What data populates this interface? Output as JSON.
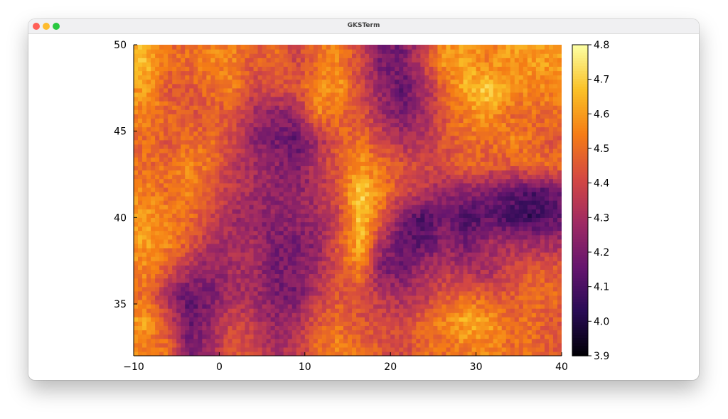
{
  "window": {
    "title": "GKSTerm"
  },
  "chart_data": {
    "type": "heatmap",
    "title": "",
    "xlabel": "",
    "ylabel": "",
    "xlim": [
      -10,
      40
    ],
    "ylim": [
      32,
      50
    ],
    "x_ticks": [
      "−10",
      "0",
      "10",
      "20",
      "30",
      "40"
    ],
    "y_ticks": [
      "35",
      "40",
      "45",
      "50"
    ],
    "colorbar": {
      "range": [
        3.9,
        4.8
      ],
      "ticks": [
        "3.9",
        "4.0",
        "4.1",
        "4.2",
        "4.3",
        "4.4",
        "4.5",
        "4.6",
        "4.7",
        "4.8"
      ],
      "colormap": "inferno"
    },
    "grid": false,
    "legend": "none",
    "y_values": [
      32.5,
      34,
      35.5,
      37,
      38.5,
      40,
      41.5,
      43,
      44.5,
      46,
      47.5,
      49
    ],
    "x_values": [
      -8.5,
      -6,
      -3.5,
      -1,
      1.5,
      4,
      6.5,
      9,
      11.5,
      14,
      16.5,
      19,
      21.5,
      24,
      26.5,
      29,
      31.5,
      34,
      36.5,
      39
    ],
    "z": [
      [
        4.55,
        4.5,
        4.2,
        4.3,
        4.45,
        4.4,
        4.3,
        4.35,
        4.5,
        4.55,
        4.5,
        4.45,
        4.4,
        4.5,
        4.5,
        4.55,
        4.55,
        4.5,
        4.5,
        4.45
      ],
      [
        4.6,
        4.4,
        4.15,
        4.25,
        4.4,
        4.35,
        4.25,
        4.3,
        4.45,
        4.5,
        4.45,
        4.4,
        4.4,
        4.5,
        4.55,
        4.65,
        4.6,
        4.5,
        4.5,
        4.45
      ],
      [
        4.5,
        4.3,
        4.15,
        4.2,
        4.3,
        4.3,
        4.2,
        4.2,
        4.35,
        4.45,
        4.4,
        4.35,
        4.3,
        4.35,
        4.45,
        4.5,
        4.45,
        4.45,
        4.5,
        4.5
      ],
      [
        4.55,
        4.45,
        4.3,
        4.25,
        4.3,
        4.3,
        4.2,
        4.2,
        4.3,
        4.45,
        4.55,
        4.2,
        4.2,
        4.3,
        4.35,
        4.3,
        4.3,
        4.4,
        4.45,
        4.45
      ],
      [
        4.6,
        4.55,
        4.45,
        4.3,
        4.3,
        4.3,
        4.2,
        4.2,
        4.25,
        4.45,
        4.65,
        4.3,
        4.15,
        4.15,
        4.25,
        4.2,
        4.3,
        4.3,
        4.3,
        4.3
      ],
      [
        4.6,
        4.55,
        4.5,
        4.4,
        4.3,
        4.25,
        4.25,
        4.25,
        4.3,
        4.4,
        4.7,
        4.45,
        4.2,
        4.1,
        4.2,
        4.1,
        4.15,
        4.1,
        4.05,
        4.15
      ],
      [
        4.55,
        4.5,
        4.55,
        4.45,
        4.35,
        4.3,
        4.25,
        4.25,
        4.3,
        4.45,
        4.7,
        4.55,
        4.4,
        4.35,
        4.25,
        4.25,
        4.2,
        4.15,
        4.1,
        4.15
      ],
      [
        4.5,
        4.5,
        4.55,
        4.5,
        4.35,
        4.3,
        4.25,
        4.2,
        4.35,
        4.45,
        4.6,
        4.5,
        4.45,
        4.4,
        4.4,
        4.5,
        4.45,
        4.45,
        4.5,
        4.5
      ],
      [
        4.5,
        4.45,
        4.5,
        4.5,
        4.4,
        4.25,
        4.2,
        4.15,
        4.3,
        4.45,
        4.5,
        4.4,
        4.3,
        4.35,
        4.45,
        4.5,
        4.5,
        4.55,
        4.5,
        4.45
      ],
      [
        4.55,
        4.5,
        4.45,
        4.45,
        4.45,
        4.3,
        4.25,
        4.25,
        4.55,
        4.5,
        4.45,
        4.3,
        4.2,
        4.3,
        4.45,
        4.55,
        4.6,
        4.5,
        4.5,
        4.5
      ],
      [
        4.6,
        4.45,
        4.45,
        4.5,
        4.55,
        4.4,
        4.4,
        4.45,
        4.55,
        4.6,
        4.4,
        4.25,
        4.15,
        4.3,
        4.5,
        4.65,
        4.7,
        4.6,
        4.55,
        4.55
      ],
      [
        4.65,
        4.5,
        4.5,
        4.55,
        4.55,
        4.45,
        4.5,
        4.4,
        4.5,
        4.55,
        4.4,
        4.2,
        4.2,
        4.4,
        4.6,
        4.6,
        4.55,
        4.6,
        4.6,
        4.6
      ]
    ]
  }
}
